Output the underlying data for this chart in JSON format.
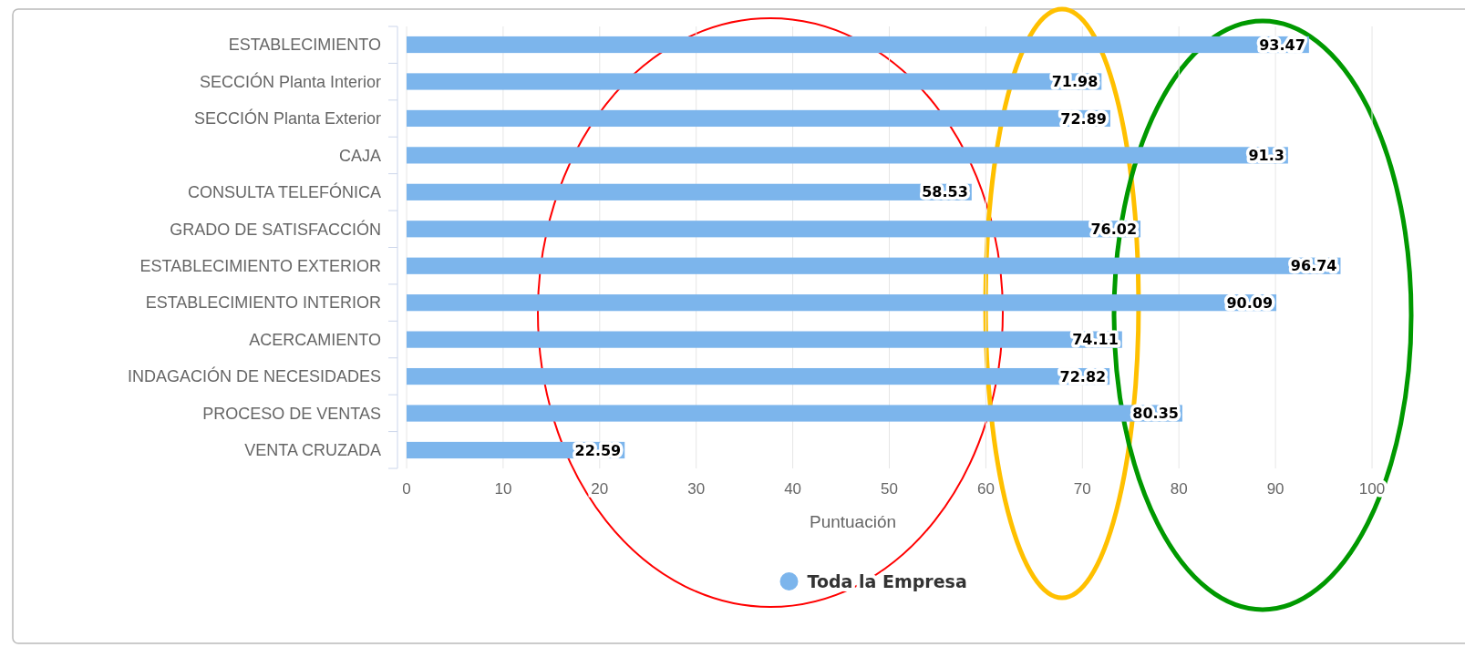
{
  "chart_data": {
    "type": "bar",
    "orientation": "horizontal",
    "xlabel": "Puntuación",
    "categories": [
      "ESTABLECIMIENTO",
      "SECCIÓN Planta Interior",
      "SECCIÓN Planta Exterior",
      "CAJA",
      "CONSULTA TELEFÓNICA",
      "GRADO DE SATISFACCIÓN",
      "ESTABLECIMIENTO EXTERIOR",
      "ESTABLECIMIENTO INTERIOR",
      "ACERCAMIENTO",
      "INDAGACIÓN DE NECESIDADES",
      "PROCESO DE VENTAS",
      "VENTA CRUZADA"
    ],
    "series": [
      {
        "name": "Toda la Empresa",
        "color": "#7cb5ec",
        "values": [
          93.47,
          71.98,
          72.89,
          91.3,
          58.53,
          76.02,
          96.74,
          90.09,
          74.11,
          72.82,
          80.35,
          22.59
        ]
      }
    ],
    "xlim": [
      0,
      100
    ],
    "xticks": [
      0,
      10,
      20,
      30,
      40,
      50,
      60,
      70,
      80,
      90,
      100
    ],
    "grid": "x",
    "legend": "bottom",
    "data_labels": true
  }
}
